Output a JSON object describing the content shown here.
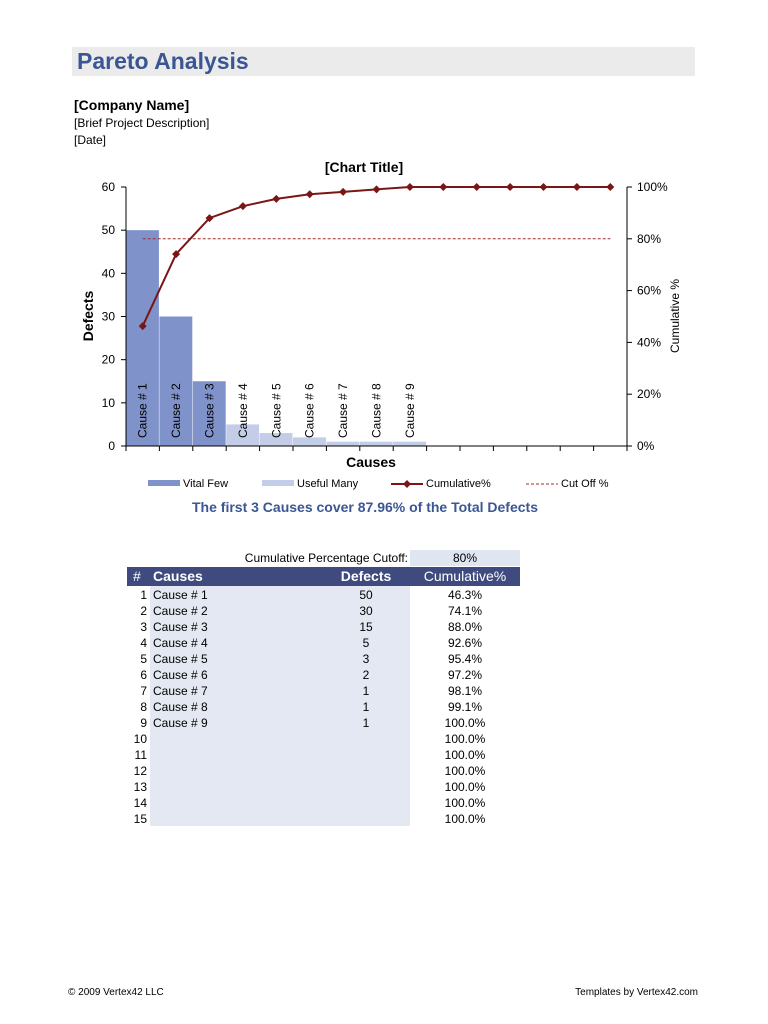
{
  "header": {
    "title": "Pareto Analysis",
    "company": "[Company Name]",
    "description": "[Brief Project Description]",
    "date": "[Date]"
  },
  "chart_data": {
    "type": "bar",
    "title": "[Chart Title]",
    "xlabel": "Causes",
    "ylabel": "Defects",
    "y2label": "Cumulative %",
    "ylim": [
      0,
      60
    ],
    "y_ticks": [
      "0",
      "10",
      "20",
      "30",
      "40",
      "50",
      "60"
    ],
    "y2lim": [
      0,
      100
    ],
    "y2_ticks": [
      "0%",
      "20%",
      "40%",
      "60%",
      "80%",
      "100%"
    ],
    "categories": [
      "Cause # 1",
      "Cause # 2",
      "Cause # 3",
      "Cause # 4",
      "Cause # 5",
      "Cause # 6",
      "Cause # 7",
      "Cause # 8",
      "Cause # 9",
      "",
      "",
      "",
      "",
      "",
      ""
    ],
    "series": [
      {
        "name": "Vital Few",
        "type": "bar",
        "color": "#7f92c9",
        "values": [
          50,
          30,
          15,
          null,
          null,
          null,
          null,
          null,
          null,
          null,
          null,
          null,
          null,
          null,
          null
        ]
      },
      {
        "name": "Useful Many",
        "type": "bar",
        "color": "#c3cde8",
        "values": [
          null,
          null,
          null,
          5,
          3,
          2,
          1,
          1,
          1,
          null,
          null,
          null,
          null,
          null,
          null
        ]
      },
      {
        "name": "Cumulative%",
        "type": "line",
        "color": "#7a1616",
        "axis": "right",
        "values": [
          46.3,
          74.1,
          88.0,
          92.6,
          95.4,
          97.2,
          98.1,
          99.1,
          100,
          100,
          100,
          100,
          100,
          100,
          100
        ]
      },
      {
        "name": "Cut Off %",
        "type": "line",
        "style": "dashed",
        "color": "#a52a2a",
        "axis": "right",
        "value": 80
      }
    ],
    "legend_position": "bottom",
    "grid": false
  },
  "summary": "The first 3 Causes cover 87.96% of the Total Defects",
  "cutoff": {
    "label": "Cumulative Percentage Cutoff:",
    "value": "80%"
  },
  "table": {
    "headers": [
      "#",
      "Causes",
      "Defects",
      "Cumulative%"
    ],
    "rows": [
      {
        "num": "1",
        "cause": "Cause # 1",
        "defects": "50",
        "cum": "46.3%"
      },
      {
        "num": "2",
        "cause": "Cause # 2",
        "defects": "30",
        "cum": "74.1%"
      },
      {
        "num": "3",
        "cause": "Cause # 3",
        "defects": "15",
        "cum": "88.0%"
      },
      {
        "num": "4",
        "cause": "Cause # 4",
        "defects": "5",
        "cum": "92.6%"
      },
      {
        "num": "5",
        "cause": "Cause # 5",
        "defects": "3",
        "cum": "95.4%"
      },
      {
        "num": "6",
        "cause": "Cause # 6",
        "defects": "2",
        "cum": "97.2%"
      },
      {
        "num": "7",
        "cause": "Cause # 7",
        "defects": "1",
        "cum": "98.1%"
      },
      {
        "num": "8",
        "cause": "Cause # 8",
        "defects": "1",
        "cum": "99.1%"
      },
      {
        "num": "9",
        "cause": "Cause # 9",
        "defects": "1",
        "cum": "100.0%"
      },
      {
        "num": "10",
        "cause": "",
        "defects": "",
        "cum": "100.0%"
      },
      {
        "num": "11",
        "cause": "",
        "defects": "",
        "cum": "100.0%"
      },
      {
        "num": "12",
        "cause": "",
        "defects": "",
        "cum": "100.0%"
      },
      {
        "num": "13",
        "cause": "",
        "defects": "",
        "cum": "100.0%"
      },
      {
        "num": "14",
        "cause": "",
        "defects": "",
        "cum": "100.0%"
      },
      {
        "num": "15",
        "cause": "",
        "defects": "",
        "cum": "100.0%"
      }
    ]
  },
  "footer": {
    "copyright": "© 2009 Vertex42 LLC",
    "credit": "Templates by Vertex42.com"
  }
}
